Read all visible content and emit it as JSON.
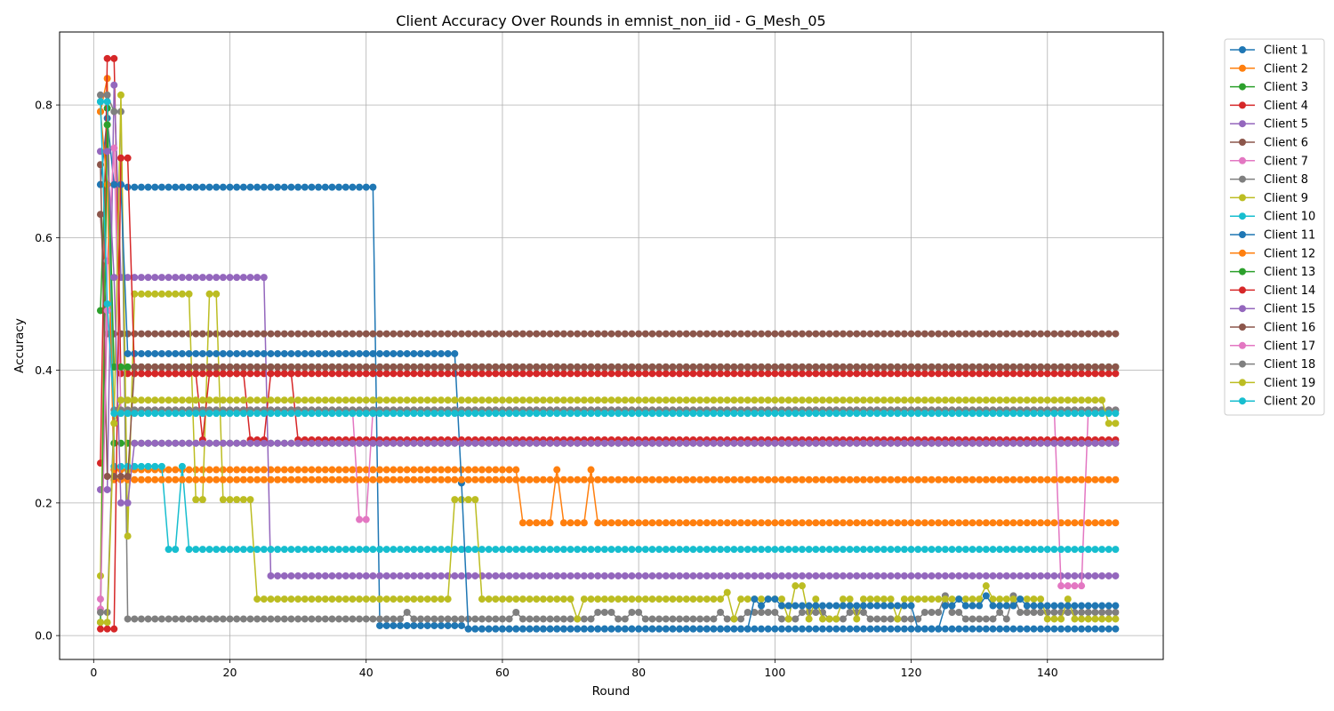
{
  "chart_data": {
    "type": "line",
    "title": "Client Accuracy Over Rounds in emnist_non_iid - G_Mesh_05",
    "xlabel": "Round",
    "ylabel": "Accuracy",
    "xlim": [
      -5,
      157
    ],
    "ylim": [
      -0.036,
      0.91
    ],
    "xticks": [
      0,
      20,
      40,
      60,
      80,
      100,
      120,
      140
    ],
    "yticks": [
      0.0,
      0.2,
      0.4,
      0.6,
      0.8
    ],
    "xtick_labels": [
      "0",
      "20",
      "40",
      "60",
      "80",
      "100",
      "120",
      "140"
    ],
    "ytick_labels": [
      "0.0",
      "0.2",
      "0.4",
      "0.6",
      "0.8"
    ],
    "grid": true,
    "legend_position": "outside-right-top",
    "marker": "circle",
    "rounds": {
      "start": 1,
      "end": 150
    },
    "series": [
      {
        "name": "Client 1",
        "color": "#1f77b4",
        "segments": [
          [
            1,
            0.68
          ],
          [
            2,
            0.78
          ],
          [
            3,
            0.68
          ],
          [
            4,
            0.68
          ],
          [
            5,
            0.676
          ],
          [
            41,
            0.676
          ],
          [
            42,
            0.015
          ],
          [
            54,
            0.015
          ],
          [
            55,
            0.01
          ],
          [
            150,
            0.01
          ]
        ]
      },
      {
        "name": "Client 2",
        "color": "#ff7f0e",
        "segments": [
          [
            1,
            0.79
          ],
          [
            2,
            0.84
          ],
          [
            3,
            0.25
          ],
          [
            62,
            0.25
          ],
          [
            63,
            0.17
          ],
          [
            67,
            0.17
          ],
          [
            68,
            0.25
          ],
          [
            69,
            0.17
          ],
          [
            72,
            0.17
          ],
          [
            73,
            0.25
          ],
          [
            74,
            0.17
          ],
          [
            76,
            0.17
          ],
          [
            77,
            0.17
          ],
          [
            150,
            0.17
          ]
        ]
      },
      {
        "name": "Client 3",
        "color": "#2ca02c",
        "segments": [
          [
            1,
            0.49
          ],
          [
            2,
            0.795
          ],
          [
            3,
            0.29
          ],
          [
            150,
            0.29
          ]
        ]
      },
      {
        "name": "Client 4",
        "color": "#d62728",
        "segments": [
          [
            1,
            0.26
          ],
          [
            2,
            0.87
          ],
          [
            3,
            0.87
          ],
          [
            4,
            0.395
          ],
          [
            150,
            0.395
          ]
        ]
      },
      {
        "name": "Client 5",
        "color": "#9467bd",
        "segments": [
          [
            1,
            0.22
          ],
          [
            2,
            0.22
          ],
          [
            3,
            0.83
          ],
          [
            4,
            0.54
          ],
          [
            25,
            0.54
          ],
          [
            26,
            0.09
          ],
          [
            150,
            0.09
          ]
        ]
      },
      {
        "name": "Client 6",
        "color": "#8c564b",
        "segments": [
          [
            1,
            0.635
          ],
          [
            2,
            0.455
          ],
          [
            150,
            0.455
          ]
        ]
      },
      {
        "name": "Client 7",
        "color": "#e377c2",
        "segments": [
          [
            1,
            0.055
          ],
          [
            2,
            0.565
          ],
          [
            3,
            0.735
          ],
          [
            4,
            0.34
          ],
          [
            38,
            0.34
          ],
          [
            39,
            0.175
          ],
          [
            40,
            0.175
          ],
          [
            41,
            0.34
          ],
          [
            141,
            0.34
          ],
          [
            142,
            0.075
          ],
          [
            145,
            0.075
          ],
          [
            146,
            0.34
          ],
          [
            150,
            0.34
          ]
        ]
      },
      {
        "name": "Client 8",
        "color": "#7f7f7f",
        "segments": [
          [
            1,
            0.815
          ],
          [
            2,
            0.815
          ],
          [
            3,
            0.79
          ],
          [
            4,
            0.79
          ],
          [
            5,
            0.025
          ],
          [
            42,
            0.025
          ],
          [
            46,
            0.035
          ],
          [
            47,
            0.025
          ],
          [
            52,
            0.025
          ],
          [
            53,
            0.025
          ],
          [
            60,
            0.025
          ],
          [
            62,
            0.035
          ],
          [
            63,
            0.025
          ],
          [
            74,
            0.035
          ],
          [
            77,
            0.025
          ],
          [
            79,
            0.035
          ],
          [
            80,
            0.035
          ],
          [
            81,
            0.025
          ],
          [
            92,
            0.035
          ],
          [
            93,
            0.025
          ],
          [
            96,
            0.035
          ],
          [
            100,
            0.035
          ],
          [
            101,
            0.025
          ],
          [
            104,
            0.035
          ],
          [
            106,
            0.035
          ],
          [
            108,
            0.025
          ],
          [
            111,
            0.035
          ],
          [
            113,
            0.035
          ],
          [
            114,
            0.025
          ],
          [
            121,
            0.025
          ],
          [
            122,
            0.035
          ],
          [
            125,
            0.06
          ],
          [
            126,
            0.035
          ],
          [
            128,
            0.025
          ],
          [
            130,
            0.025
          ],
          [
            133,
            0.035
          ],
          [
            134,
            0.025
          ],
          [
            135,
            0.06
          ],
          [
            136,
            0.035
          ],
          [
            150,
            0.035
          ]
        ]
      },
      {
        "name": "Client 9",
        "color": "#bcbd22",
        "segments": [
          [
            1,
            0.09
          ],
          [
            2,
            0.77
          ],
          [
            3,
            0.32
          ],
          [
            4,
            0.815
          ],
          [
            5,
            0.15
          ],
          [
            6,
            0.515
          ],
          [
            14,
            0.515
          ],
          [
            15,
            0.205
          ],
          [
            16,
            0.205
          ],
          [
            17,
            0.515
          ],
          [
            18,
            0.515
          ],
          [
            19,
            0.205
          ],
          [
            23,
            0.205
          ],
          [
            24,
            0.055
          ],
          [
            52,
            0.055
          ],
          [
            53,
            0.205
          ],
          [
            56,
            0.205
          ],
          [
            57,
            0.055
          ],
          [
            70,
            0.055
          ],
          [
            71,
            0.025
          ],
          [
            72,
            0.055
          ],
          [
            92,
            0.055
          ],
          [
            93,
            0.065
          ],
          [
            94,
            0.025
          ],
          [
            95,
            0.055
          ],
          [
            101,
            0.055
          ],
          [
            102,
            0.025
          ],
          [
            103,
            0.075
          ],
          [
            104,
            0.075
          ],
          [
            105,
            0.025
          ],
          [
            106,
            0.055
          ],
          [
            107,
            0.025
          ],
          [
            109,
            0.025
          ],
          [
            110,
            0.055
          ],
          [
            111,
            0.055
          ],
          [
            112,
            0.025
          ],
          [
            113,
            0.055
          ],
          [
            117,
            0.055
          ],
          [
            118,
            0.025
          ],
          [
            119,
            0.055
          ],
          [
            130,
            0.055
          ],
          [
            131,
            0.075
          ],
          [
            132,
            0.055
          ],
          [
            139,
            0.055
          ],
          [
            140,
            0.025
          ],
          [
            142,
            0.025
          ],
          [
            143,
            0.055
          ],
          [
            144,
            0.025
          ],
          [
            150,
            0.025
          ]
        ]
      },
      {
        "name": "Client 10",
        "color": "#17becf",
        "segments": [
          [
            1,
            0.805
          ],
          [
            2,
            0.805
          ],
          [
            3,
            0.255
          ],
          [
            10,
            0.255
          ],
          [
            11,
            0.13
          ],
          [
            12,
            0.13
          ],
          [
            13,
            0.255
          ],
          [
            14,
            0.13
          ],
          [
            150,
            0.13
          ]
        ]
      },
      {
        "name": "Client 11",
        "color": "#1f77b4",
        "segments": [
          [
            1,
            0.68
          ],
          [
            2,
            0.68
          ],
          [
            3,
            0.68
          ],
          [
            4,
            0.68
          ],
          [
            5,
            0.425
          ],
          [
            53,
            0.425
          ],
          [
            54,
            0.23
          ],
          [
            55,
            0.01
          ],
          [
            96,
            0.01
          ],
          [
            97,
            0.055
          ],
          [
            98,
            0.045
          ],
          [
            99,
            0.055
          ],
          [
            100,
            0.055
          ],
          [
            101,
            0.045
          ],
          [
            105,
            0.045
          ],
          [
            106,
            0.045
          ],
          [
            112,
            0.045
          ],
          [
            120,
            0.045
          ],
          [
            121,
            0.01
          ],
          [
            125,
            0.045
          ],
          [
            127,
            0.055
          ],
          [
            128,
            0.045
          ],
          [
            131,
            0.06
          ],
          [
            132,
            0.045
          ],
          [
            136,
            0.055
          ],
          [
            137,
            0.045
          ],
          [
            139,
            0.045
          ],
          [
            140,
            0.045
          ],
          [
            150,
            0.045
          ]
        ]
      },
      {
        "name": "Client 12",
        "color": "#ff7f0e",
        "segments": [
          [
            1,
            0.79
          ],
          [
            2,
            0.68
          ],
          [
            3,
            0.235
          ],
          [
            150,
            0.235
          ]
        ]
      },
      {
        "name": "Client 13",
        "color": "#2ca02c",
        "segments": [
          [
            1,
            0.02
          ],
          [
            2,
            0.77
          ],
          [
            3,
            0.405
          ],
          [
            150,
            0.405
          ]
        ]
      },
      {
        "name": "Client 14",
        "color": "#d62728",
        "segments": [
          [
            1,
            0.01
          ],
          [
            2,
            0.01
          ],
          [
            3,
            0.01
          ],
          [
            4,
            0.72
          ],
          [
            5,
            0.72
          ],
          [
            6,
            0.395
          ],
          [
            15,
            0.395
          ],
          [
            16,
            0.295
          ],
          [
            17,
            0.395
          ],
          [
            22,
            0.395
          ],
          [
            23,
            0.295
          ],
          [
            25,
            0.295
          ],
          [
            26,
            0.395
          ],
          [
            29,
            0.395
          ],
          [
            30,
            0.295
          ],
          [
            150,
            0.295
          ]
        ]
      },
      {
        "name": "Client 15",
        "color": "#9467bd",
        "segments": [
          [
            1,
            0.73
          ],
          [
            2,
            0.73
          ],
          [
            3,
            0.54
          ],
          [
            4,
            0.2
          ],
          [
            5,
            0.2
          ],
          [
            6,
            0.29
          ],
          [
            150,
            0.29
          ]
        ]
      },
      {
        "name": "Client 16",
        "color": "#8c564b",
        "segments": [
          [
            1,
            0.71
          ],
          [
            2,
            0.24
          ],
          [
            5,
            0.24
          ],
          [
            6,
            0.405
          ],
          [
            150,
            0.405
          ]
        ]
      },
      {
        "name": "Client 17",
        "color": "#e377c2",
        "segments": [
          [
            1,
            0.04
          ],
          [
            2,
            0.49
          ],
          [
            3,
            0.34
          ],
          [
            150,
            0.34
          ]
        ]
      },
      {
        "name": "Client 18",
        "color": "#7f7f7f",
        "segments": [
          [
            1,
            0.035
          ],
          [
            2,
            0.035
          ],
          [
            3,
            0.34
          ],
          [
            150,
            0.34
          ]
        ]
      },
      {
        "name": "Client 19",
        "color": "#bcbd22",
        "segments": [
          [
            1,
            0.02
          ],
          [
            2,
            0.02
          ],
          [
            3,
            0.32
          ],
          [
            4,
            0.355
          ],
          [
            148,
            0.355
          ],
          [
            149,
            0.32
          ],
          [
            150,
            0.32
          ]
        ]
      },
      {
        "name": "Client 20",
        "color": "#17becf",
        "segments": [
          [
            1,
            0.805
          ],
          [
            2,
            0.5
          ],
          [
            3,
            0.335
          ],
          [
            150,
            0.335
          ]
        ]
      }
    ]
  }
}
